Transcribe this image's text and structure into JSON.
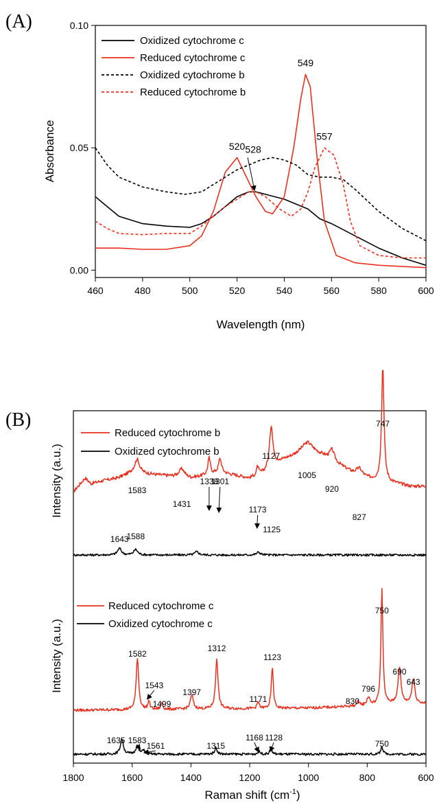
{
  "chart_data": [
    {
      "type": "line",
      "panel_label": "(A)",
      "xlabel": "Wavelength (nm)",
      "ylabel": "Absorbance",
      "xlim": [
        460,
        600
      ],
      "ylim": [
        -0.003,
        0.1
      ],
      "x_ticks": [
        "460",
        "480",
        "500",
        "520",
        "540",
        "560",
        "580",
        "600"
      ],
      "y_ticks": [
        "0.00",
        "0.05",
        "0.10"
      ],
      "legend_position": "top-left",
      "series": [
        {
          "name": "Oxidized cytochrome c",
          "color": "#000000",
          "dash": "solid",
          "points": [
            [
              460,
              0.03
            ],
            [
              465,
              0.026
            ],
            [
              470,
              0.022
            ],
            [
              480,
              0.019
            ],
            [
              490,
              0.018
            ],
            [
              500,
              0.0175
            ],
            [
              505,
              0.019
            ],
            [
              510,
              0.022
            ],
            [
              515,
              0.026
            ],
            [
              520,
              0.03
            ],
            [
              525,
              0.032
            ],
            [
              528,
              0.032
            ],
            [
              532,
              0.031
            ],
            [
              540,
              0.029
            ],
            [
              545,
              0.027
            ],
            [
              550,
              0.025
            ],
            [
              555,
              0.021
            ],
            [
              560,
              0.019
            ],
            [
              570,
              0.014
            ],
            [
              580,
              0.009
            ],
            [
              590,
              0.005
            ],
            [
              600,
              0.002
            ]
          ]
        },
        {
          "name": "Reduced cytochrome c",
          "color": "#e8301f",
          "dash": "solid",
          "points": [
            [
              460,
              0.009
            ],
            [
              470,
              0.009
            ],
            [
              480,
              0.0085
            ],
            [
              490,
              0.0085
            ],
            [
              500,
              0.01
            ],
            [
              505,
              0.014
            ],
            [
              510,
              0.024
            ],
            [
              515,
              0.04
            ],
            [
              520,
              0.046
            ],
            [
              524,
              0.038
            ],
            [
              528,
              0.03
            ],
            [
              532,
              0.024
            ],
            [
              535,
              0.023
            ],
            [
              540,
              0.03
            ],
            [
              544,
              0.05
            ],
            [
              547,
              0.07
            ],
            [
              549,
              0.08
            ],
            [
              551,
              0.075
            ],
            [
              554,
              0.045
            ],
            [
              557,
              0.02
            ],
            [
              562,
              0.006
            ],
            [
              570,
              0.003
            ],
            [
              580,
              0.002
            ],
            [
              600,
              0.001
            ]
          ]
        },
        {
          "name": "Oxidized cytochrome b",
          "color": "#000000",
          "dash": "dashed",
          "points": [
            [
              460,
              0.05
            ],
            [
              465,
              0.043
            ],
            [
              470,
              0.038
            ],
            [
              480,
              0.034
            ],
            [
              490,
              0.032
            ],
            [
              498,
              0.031
            ],
            [
              505,
              0.032
            ],
            [
              510,
              0.035
            ],
            [
              520,
              0.041
            ],
            [
              530,
              0.045
            ],
            [
              535,
              0.046
            ],
            [
              540,
              0.045
            ],
            [
              545,
              0.043
            ],
            [
              550,
              0.039
            ],
            [
              555,
              0.038
            ],
            [
              560,
              0.038
            ],
            [
              565,
              0.037
            ],
            [
              570,
              0.033
            ],
            [
              580,
              0.024
            ],
            [
              590,
              0.017
            ],
            [
              600,
              0.012
            ]
          ]
        },
        {
          "name": "Reduced cytochrome b",
          "color": "#e8301f",
          "dash": "dashed",
          "points": [
            [
              460,
              0.02
            ],
            [
              465,
              0.017
            ],
            [
              470,
              0.015
            ],
            [
              480,
              0.0145
            ],
            [
              490,
              0.015
            ],
            [
              500,
              0.015
            ],
            [
              505,
              0.018
            ],
            [
              510,
              0.022
            ],
            [
              515,
              0.026
            ],
            [
              520,
              0.029
            ],
            [
              525,
              0.032
            ],
            [
              528,
              0.032
            ],
            [
              532,
              0.03
            ],
            [
              538,
              0.025
            ],
            [
              543,
              0.022
            ],
            [
              547,
              0.025
            ],
            [
              550,
              0.032
            ],
            [
              553,
              0.042
            ],
            [
              557,
              0.05
            ],
            [
              561,
              0.047
            ],
            [
              565,
              0.035
            ],
            [
              568,
              0.02
            ],
            [
              572,
              0.01
            ],
            [
              580,
              0.006
            ],
            [
              590,
              0.005
            ],
            [
              600,
              0.005
            ]
          ]
        }
      ],
      "annotations": [
        {
          "text": "520",
          "x": 520,
          "y": 0.047,
          "arrow": false
        },
        {
          "text": "528",
          "x": 528,
          "y": 0.032,
          "arrow": true
        },
        {
          "text": "549",
          "x": 549,
          "y": 0.081,
          "arrow": false
        },
        {
          "text": "557",
          "x": 557,
          "y": 0.051,
          "arrow": false
        }
      ]
    },
    {
      "type": "line",
      "panel_label": "(B)",
      "xlabel": "Raman shift (cm",
      "xlabel_sup": "-1",
      "xlabel_close": ")",
      "x_reversed": true,
      "xlim": [
        1800,
        600
      ],
      "x_ticks": [
        "1800",
        "1600",
        "1400",
        "1200",
        "1000",
        "800",
        "600"
      ],
      "ylabel_top": "Intensity (a.u.)",
      "ylabel_bottom": "Intensity (a.u.)",
      "legend_top": [
        "Reduced cytochrome b",
        "Oxidized cytochrome b"
      ],
      "legend_bottom": [
        "Reduced cytochrome c",
        "Oxidized cytochrome c"
      ],
      "series": [
        {
          "name": "Reduced cytochrome b",
          "color": "#e8301f",
          "base": 0.2,
          "noise": 0.03,
          "baseline": [
            [
              1800,
              0.2
            ],
            [
              1760,
              0.45
            ],
            [
              1740,
              0.35
            ],
            [
              1700,
              0.4
            ],
            [
              1650,
              0.45
            ],
            [
              1600,
              0.55
            ],
            [
              1500,
              0.5
            ],
            [
              1400,
              0.45
            ],
            [
              1300,
              0.55
            ],
            [
              1200,
              0.45
            ],
            [
              1150,
              0.55
            ],
            [
              1100,
              0.75
            ],
            [
              1050,
              0.85
            ],
            [
              1000,
              0.95
            ],
            [
              950,
              0.85
            ],
            [
              900,
              0.7
            ],
            [
              850,
              0.55
            ],
            [
              800,
              0.45
            ],
            [
              760,
              0.4
            ],
            [
              700,
              0.35
            ],
            [
              650,
              0.3
            ],
            [
              600,
              0.3
            ]
          ],
          "peaks": [
            [
              1583,
              0.25,
              10
            ],
            [
              1431,
              0.15,
              12
            ],
            [
              1338,
              0.3,
              5
            ],
            [
              1301,
              0.25,
              6
            ],
            [
              1173,
              0.15,
              4
            ],
            [
              1125,
              0.12,
              5
            ],
            [
              1127,
              0.65,
              7
            ],
            [
              1005,
              0.15,
              25
            ],
            [
              920,
              0.2,
              10
            ],
            [
              827,
              0.12,
              12
            ],
            [
              747,
              2.1,
              5
            ]
          ]
        },
        {
          "name": "Oxidized cytochrome b",
          "color": "#000000",
          "base": 0.0,
          "noise": 0.02,
          "baseline": [
            [
              1800,
              0.0
            ],
            [
              600,
              0.0
            ]
          ],
          "peaks": [
            [
              1643,
              0.12,
              8
            ],
            [
              1588,
              0.1,
              8
            ],
            [
              1380,
              0.06,
              8
            ],
            [
              1170,
              0.05,
              8
            ]
          ]
        },
        {
          "name": "Reduced cytochrome c",
          "color": "#e8301f",
          "base": 0.18,
          "noise": 0.025,
          "baseline": [
            [
              1800,
              0.18
            ],
            [
              1400,
              0.2
            ],
            [
              1000,
              0.22
            ],
            [
              800,
              0.26
            ],
            [
              700,
              0.3
            ],
            [
              600,
              0.3
            ]
          ],
          "peaks": [
            [
              1582,
              0.95,
              5
            ],
            [
              1543,
              0.15,
              4
            ],
            [
              1499,
              0.12,
              4
            ],
            [
              1397,
              0.25,
              6
            ],
            [
              1312,
              0.92,
              5
            ],
            [
              1171,
              0.12,
              4
            ],
            [
              1123,
              0.75,
              4
            ],
            [
              830,
              0.08,
              6
            ],
            [
              796,
              0.15,
              6
            ],
            [
              750,
              2.1,
              4
            ],
            [
              690,
              0.65,
              6
            ],
            [
              643,
              0.45,
              6
            ]
          ]
        },
        {
          "name": "Oxidized cytochrome c",
          "color": "#000000",
          "base": 0.0,
          "noise": 0.022,
          "baseline": [
            [
              1800,
              0.0
            ],
            [
              600,
              0.0
            ]
          ],
          "peaks": [
            [
              1635,
              0.28,
              6
            ],
            [
              1583,
              0.15,
              6
            ],
            [
              1561,
              0.08,
              5
            ],
            [
              1315,
              0.12,
              5
            ],
            [
              1168,
              0.05,
              5
            ],
            [
              1128,
              0.08,
              5
            ],
            [
              750,
              0.15,
              4
            ]
          ]
        }
      ],
      "annotations_top": [
        {
          "text": "1583"
        },
        {
          "text": "1431"
        },
        {
          "text": "1338"
        },
        {
          "text": "1301"
        },
        {
          "text": "1173"
        },
        {
          "text": "1125"
        },
        {
          "text": "1127"
        },
        {
          "text": "1005"
        },
        {
          "text": "920"
        },
        {
          "text": "827"
        },
        {
          "text": "747"
        },
        {
          "text": "1643"
        },
        {
          "text": "1588"
        }
      ],
      "annotations_bottom": [
        {
          "text": "1582"
        },
        {
          "text": "1543"
        },
        {
          "text": "1499"
        },
        {
          "text": "1397"
        },
        {
          "text": "1312"
        },
        {
          "text": "1171"
        },
        {
          "text": "1123"
        },
        {
          "text": "830"
        },
        {
          "text": "796"
        },
        {
          "text": "750"
        },
        {
          "text": "690"
        },
        {
          "text": "643"
        },
        {
          "text": "1635"
        },
        {
          "text": "1583"
        },
        {
          "text": "1561"
        },
        {
          "text": "1315"
        },
        {
          "text": "1168"
        },
        {
          "text": "1128"
        },
        {
          "text": "750"
        }
      ]
    }
  ]
}
